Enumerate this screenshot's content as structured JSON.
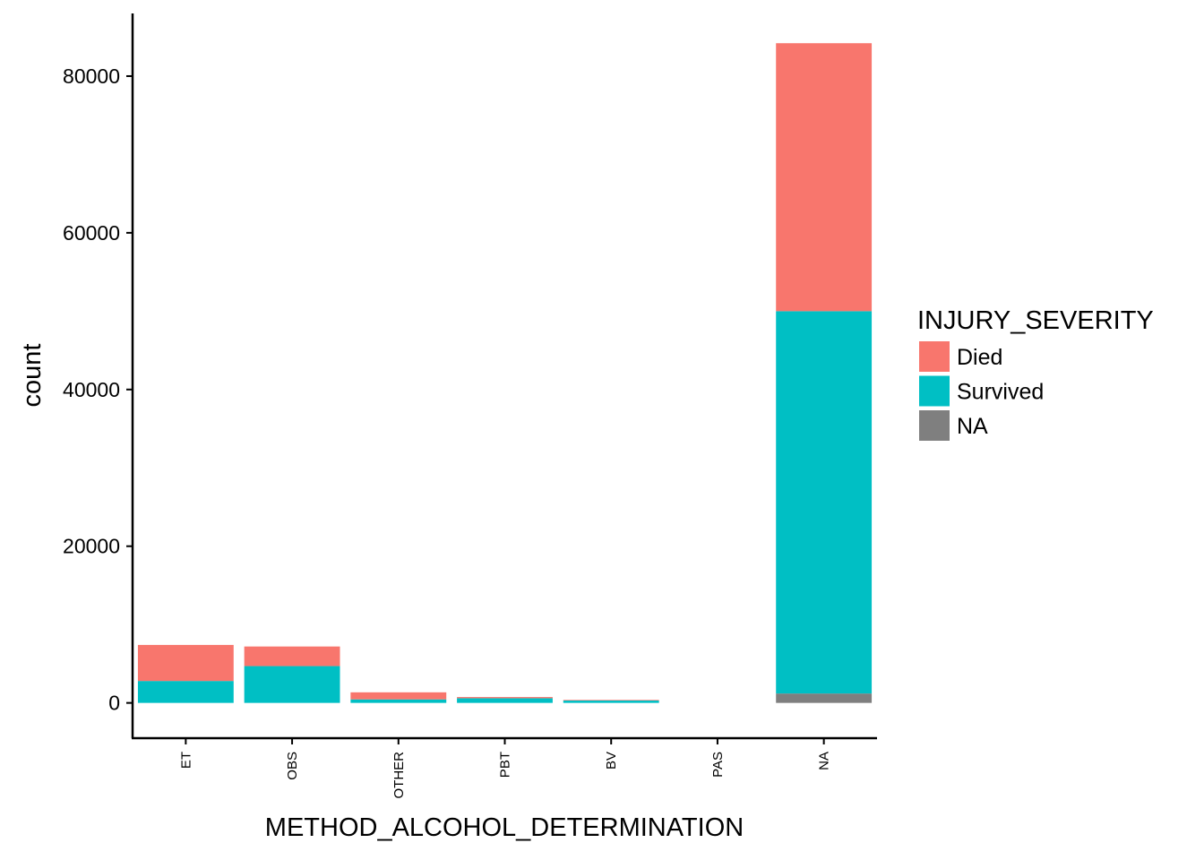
{
  "chart_data": {
    "type": "bar",
    "stacked": true,
    "xlabel": "METHOD_ALCOHOL_DETERMINATION",
    "ylabel": "count",
    "categories": [
      "ET",
      "OBS",
      "OTHER",
      "PBT",
      "BV",
      "PAS",
      "NA"
    ],
    "ylim": [
      -4500,
      88000
    ],
    "yticks": [
      0,
      20000,
      40000,
      60000,
      80000
    ],
    "yticklabels": [
      "0",
      "20000",
      "40000",
      "60000",
      "80000"
    ],
    "grid": false,
    "legend": {
      "title": "INJURY_SEVERITY",
      "placement": "right",
      "entries": [
        "Died",
        "Survived",
        "NA"
      ]
    },
    "series": [
      {
        "name": "NA",
        "color": "#7f7f7f",
        "values": [
          0,
          0,
          0,
          0,
          0,
          0,
          1200
        ]
      },
      {
        "name": "Survived",
        "color": "#00bfc4",
        "values": [
          2800,
          4700,
          450,
          600,
          300,
          0,
          48800
        ]
      },
      {
        "name": "Died",
        "color": "#f8766d",
        "values": [
          4600,
          2500,
          900,
          150,
          80,
          0,
          34200
        ]
      }
    ]
  }
}
